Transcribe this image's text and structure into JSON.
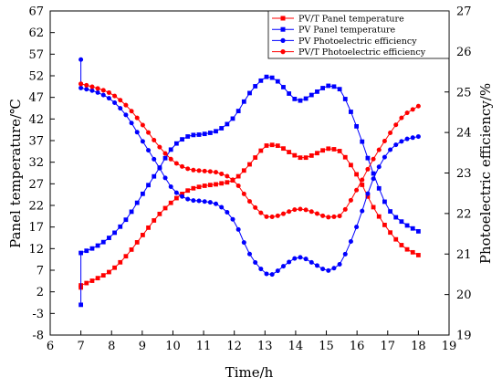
{
  "chart_data": {
    "type": "line",
    "xlabel": "Time/h",
    "ylabel_left": "Panel temperature/℃",
    "ylabel_right": "Photoelectric efficiency/%",
    "xlim": [
      6,
      19
    ],
    "ylim_left": [
      -8,
      67
    ],
    "ylim_right": [
      19,
      27
    ],
    "x_ticks": [
      "6",
      "7",
      "8",
      "9",
      "10",
      "11",
      "12",
      "13",
      "14",
      "15",
      "16",
      "17",
      "18",
      "19"
    ],
    "y_left_ticks": [
      "-8",
      "-3",
      "2",
      "7",
      "12",
      "17",
      "22",
      "27",
      "32",
      "37",
      "42",
      "47",
      "52",
      "57",
      "62",
      "67"
    ],
    "y_right_ticks": [
      "19",
      "20",
      "21",
      "22",
      "23",
      "24",
      "25",
      "26",
      "27"
    ],
    "grid": false,
    "legend_position": "top-right",
    "x_keypoints": [
      7,
      7.5,
      8,
      8.5,
      9,
      9.5,
      10,
      10.5,
      11,
      11.5,
      12,
      12.5,
      13,
      13.25,
      13.5,
      14,
      14.25,
      14.5,
      15,
      15.25,
      15.5,
      16,
      16.5,
      17,
      17.5,
      18
    ],
    "series": [
      {
        "name": "PV/T Panel temperature",
        "axis": "left",
        "color": "#ff0000",
        "marker": "square",
        "start_value": 3,
        "values": [
          3.5,
          5,
          7,
          10.5,
          15,
          19.5,
          23,
          25.5,
          26.5,
          27,
          28,
          31.5,
          35.5,
          36,
          35.5,
          33.5,
          33,
          33.5,
          35,
          35,
          34,
          29,
          22,
          16.5,
          12.5,
          10.5
        ]
      },
      {
        "name": "PV Panel temperature",
        "axis": "left",
        "color": "#0000ff",
        "marker": "square",
        "start_value": -1,
        "values": [
          11,
          12.5,
          15,
          19,
          24.5,
          30,
          35.5,
          38,
          38.5,
          39.5,
          42.5,
          48,
          51.5,
          51.5,
          50,
          46.5,
          46.5,
          47.5,
          49.5,
          49.5,
          48,
          40,
          30,
          21.5,
          18,
          16
        ]
      },
      {
        "name": "PV Photoelectric efficiency",
        "axis": "right",
        "color": "#0000ff",
        "marker": "circle",
        "start_value": 25.8,
        "values": [
          25.1,
          25.0,
          24.8,
          24.4,
          23.8,
          23.2,
          22.6,
          22.35,
          22.3,
          22.2,
          21.8,
          21.0,
          20.55,
          20.5,
          20.65,
          20.9,
          20.9,
          20.8,
          20.6,
          20.65,
          20.85,
          21.7,
          22.8,
          23.5,
          23.8,
          23.9
        ]
      },
      {
        "name": "PV/T Photoelectric efficiency",
        "axis": "right",
        "color": "#ff0000",
        "marker": "circle",
        "start_value": 25.2,
        "values": [
          25.2,
          25.1,
          24.95,
          24.65,
          24.2,
          23.7,
          23.3,
          23.1,
          23.05,
          23.0,
          22.8,
          22.3,
          21.95,
          21.92,
          21.97,
          22.1,
          22.1,
          22.05,
          21.92,
          21.92,
          22.0,
          22.6,
          23.3,
          23.9,
          24.4,
          24.65
        ]
      }
    ]
  }
}
